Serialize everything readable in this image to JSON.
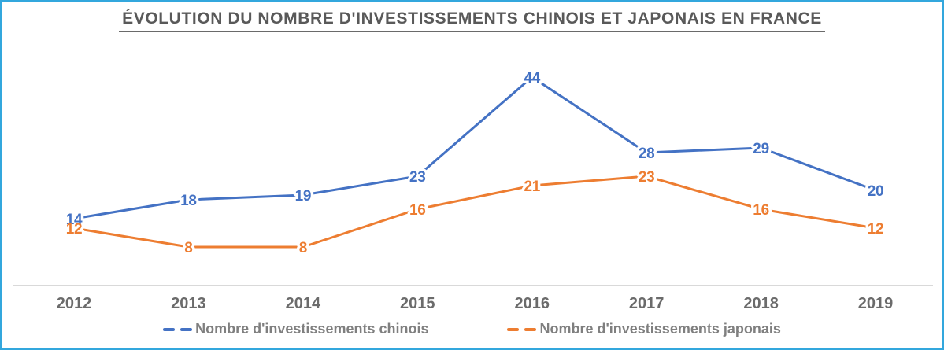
{
  "frame": {
    "border_color": "#33A7DD",
    "background": "#ffffff"
  },
  "title": {
    "text": "ÉVOLUTION DU NOMBRE D'INVESTISSEMENTS CHINOIS ET JAPONAIS EN FRANCE",
    "color": "#595959"
  },
  "chart_data": {
    "type": "line",
    "title": "ÉVOLUTION DU NOMBRE D'INVESTISSEMENTS CHINOIS ET JAPONAIS EN FRANCE",
    "categories": [
      "2012",
      "2013",
      "2014",
      "2015",
      "2016",
      "2017",
      "2018",
      "2019"
    ],
    "series": [
      {
        "name": "Nombre d'investissements chinois",
        "values": [
          14,
          18,
          19,
          23,
          44,
          28,
          29,
          20
        ],
        "color": "#4472C4"
      },
      {
        "name": "Nombre d'investissements japonais",
        "values": [
          12,
          8,
          8,
          16,
          21,
          23,
          16,
          12
        ],
        "color": "#ED7D31"
      }
    ],
    "xlabel": "",
    "ylabel": "",
    "ylim": [
      0,
      48
    ],
    "grid": false,
    "data_labels": true,
    "legend_position": "bottom",
    "axis_line_color": "#D9D9D9",
    "tick_label_color": "#6B6B6B",
    "data_label_halo_color": "#ffffff"
  },
  "legend": {
    "text_color": "#7F7F7F"
  }
}
